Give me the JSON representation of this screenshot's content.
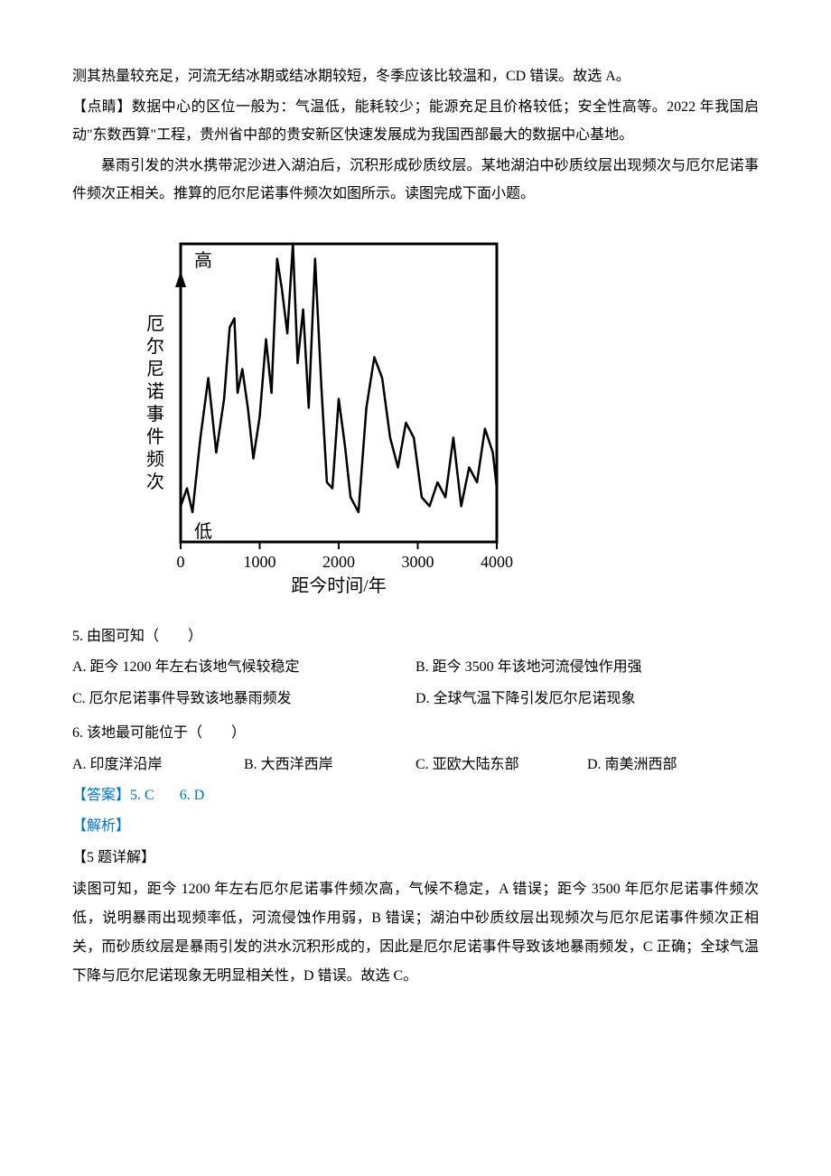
{
  "para1": "测其热量较充足，河流无结冰期或结冰期较短，冬季应该比较温和，CD 错误。故选 A。",
  "para2": "【点睛】数据中心的区位一般为：气温低，能耗较少；能源充足且价格较低；安全性高等。2022 年我国启动\"东数西算\"工程，贵州省中部的贵安新区快速发展成为我国西部最大的数据中心基地。",
  "para3": "暴雨引发的洪水携带泥沙进入湖泊后，沉积形成砂质纹层。某地湖泊中砂质纹层出现频次与厄尔尼诺事件频次正相关。推算的厄尔尼诺事件频次如图所示。读图完成下面小题。",
  "chart": {
    "type": "line",
    "y_label_vertical": "厄尔尼诺事件频次",
    "y_high": "高",
    "y_low": "低",
    "x_label": "距今时间/年",
    "x_ticks": [
      "0",
      "1000",
      "2000",
      "3000",
      "4000"
    ],
    "xlim": [
      0,
      4000
    ],
    "line_color": "#000000",
    "line_width": 2.5,
    "border_color": "#000000",
    "border_width": 3,
    "background_color": "#ffffff",
    "font_size_axis": 18,
    "data_points": [
      [
        0,
        12
      ],
      [
        80,
        18
      ],
      [
        150,
        10
      ],
      [
        250,
        35
      ],
      [
        350,
        55
      ],
      [
        450,
        30
      ],
      [
        550,
        48
      ],
      [
        620,
        72
      ],
      [
        680,
        75
      ],
      [
        720,
        50
      ],
      [
        780,
        58
      ],
      [
        850,
        45
      ],
      [
        920,
        28
      ],
      [
        1000,
        42
      ],
      [
        1080,
        68
      ],
      [
        1150,
        50
      ],
      [
        1220,
        95
      ],
      [
        1280,
        85
      ],
      [
        1350,
        70
      ],
      [
        1420,
        100
      ],
      [
        1480,
        60
      ],
      [
        1550,
        78
      ],
      [
        1620,
        45
      ],
      [
        1700,
        95
      ],
      [
        1780,
        52
      ],
      [
        1850,
        20
      ],
      [
        1920,
        18
      ],
      [
        2000,
        48
      ],
      [
        2080,
        32
      ],
      [
        2150,
        15
      ],
      [
        2250,
        10
      ],
      [
        2350,
        45
      ],
      [
        2450,
        62
      ],
      [
        2550,
        55
      ],
      [
        2650,
        35
      ],
      [
        2750,
        25
      ],
      [
        2850,
        40
      ],
      [
        2950,
        35
      ],
      [
        3050,
        15
      ],
      [
        3150,
        12
      ],
      [
        3250,
        20
      ],
      [
        3350,
        15
      ],
      [
        3450,
        35
      ],
      [
        3550,
        12
      ],
      [
        3650,
        25
      ],
      [
        3750,
        20
      ],
      [
        3850,
        38
      ],
      [
        3950,
        30
      ],
      [
        4000,
        18
      ]
    ]
  },
  "q5": {
    "stem": "5. 由图可知（　　）",
    "optA": "A. 距今 1200 年左右该地气候较稳定",
    "optB": "B. 距今 3500 年该地河流侵蚀作用强",
    "optC": "C. 厄尔尼诺事件导致该地暴雨频发",
    "optD": "D. 全球气温下降引发厄尔尼诺现象"
  },
  "q6": {
    "stem": "6. 该地最可能位于（　　）",
    "optA": "A. 印度洋沿岸",
    "optB": "B. 大西洋西岸",
    "optC": "C. 亚欧大陆东部",
    "optD": "D. 南美洲西部"
  },
  "answer_label": "【答案】",
  "answer_5": "5. C",
  "answer_6": "6. D",
  "analysis_label": "【解析】",
  "q5_detail_title": "【5 题详解】",
  "q5_detail_text": "读图可知，距今 1200 年左右厄尔尼诺事件频次高，气候不稳定，A 错误；距今 3500 年厄尔尼诺事件频次低，说明暴雨出现频率低，河流侵蚀作用弱，B 错误；湖泊中砂质纹层出现频次与厄尔尼诺事件频次正相关，而砂质纹层是暴雨引发的洪水沉积形成的，因此是厄尔尼诺事件导致该地暴雨频发，C 正确；全球气温下降与厄尔尼诺现象无明显相关性，D 错误。故选 C。"
}
